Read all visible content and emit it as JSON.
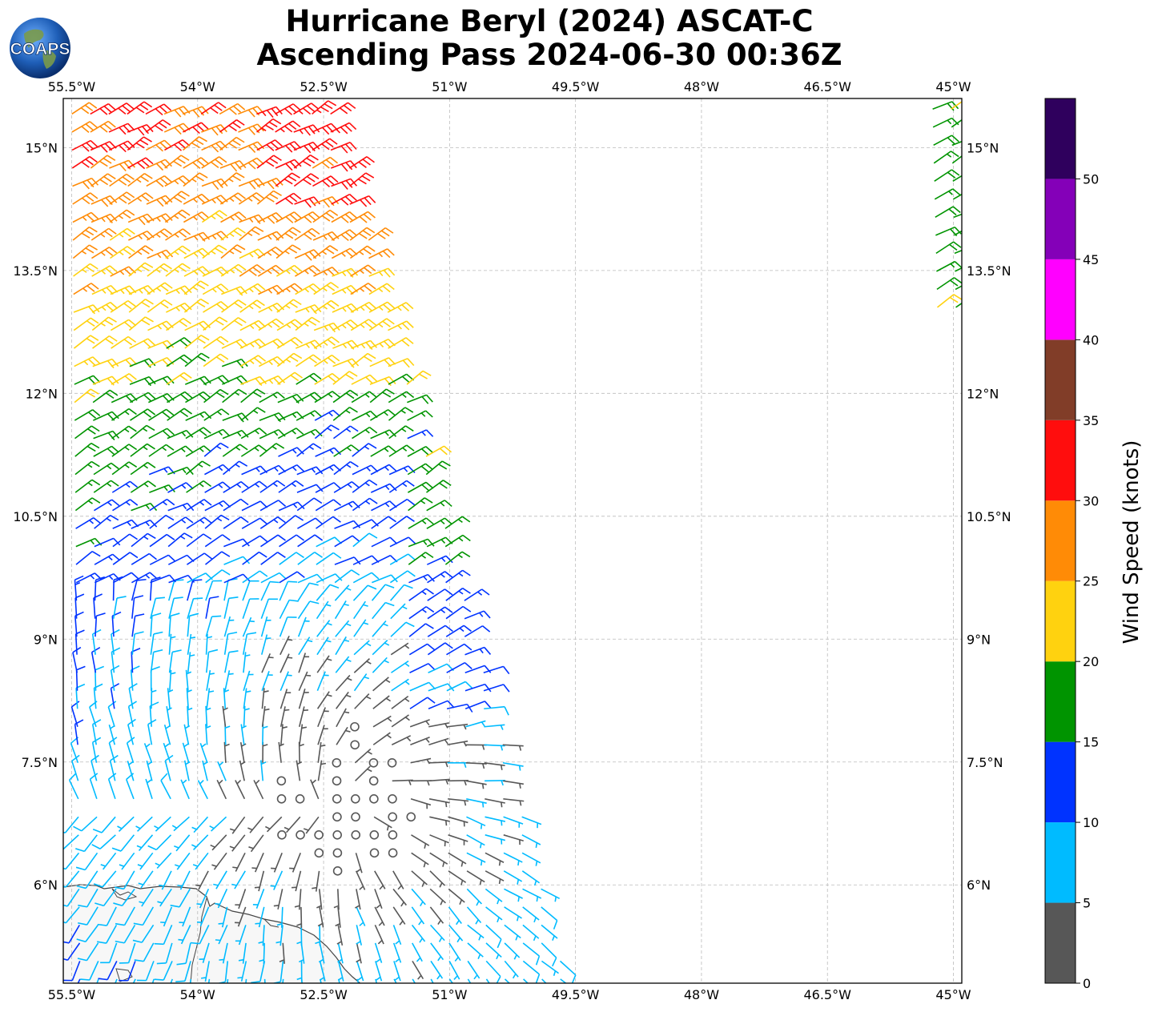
{
  "title": {
    "line1": "Hurricane Beryl (2024) ASCAT-C",
    "line2": "Ascending Pass 2024-06-30 00:36Z"
  },
  "logo": {
    "text": "COAPS",
    "icon": "globe-icon"
  },
  "map": {
    "lon_range": [
      -55.6,
      -44.9
    ],
    "lat_range": [
      4.8,
      15.6
    ],
    "lon_ticks": [
      "55.5°W",
      "54°W",
      "52.5°W",
      "51°W",
      "49.5°W",
      "48°W",
      "46.5°W",
      "45°W"
    ],
    "lat_ticks": [
      "15°N",
      "13.5°N",
      "12°N",
      "10.5°N",
      "9°N",
      "7.5°N",
      "6°N"
    ],
    "gridlines": true,
    "land_color": "#f7f7f7",
    "coast_color": "#444444"
  },
  "colorbar": {
    "label": "Wind Speed (knots)",
    "ticks": [
      "0",
      "5",
      "10",
      "15",
      "20",
      "25",
      "30",
      "35",
      "40",
      "45",
      "50"
    ],
    "bins": [
      {
        "min": 0,
        "max": 5,
        "color": "#575757"
      },
      {
        "min": 5,
        "max": 10,
        "color": "#00bbff"
      },
      {
        "min": 10,
        "max": 15,
        "color": "#0033ff"
      },
      {
        "min": 15,
        "max": 20,
        "color": "#009400"
      },
      {
        "min": 20,
        "max": 25,
        "color": "#ffd20f"
      },
      {
        "min": 25,
        "max": 30,
        "color": "#ff8b06"
      },
      {
        "min": 30,
        "max": 35,
        "color": "#ff0d0d"
      },
      {
        "min": 35,
        "max": 40,
        "color": "#813d28"
      },
      {
        "min": 40,
        "max": 45,
        "color": "#ff00ff"
      },
      {
        "min": 45,
        "max": 50,
        "color": "#8400b8"
      },
      {
        "min": 50,
        "max": 55,
        "color": "#2f005d"
      }
    ]
  },
  "wind_field": {
    "description_center": [
      -52.2,
      7.0
    ],
    "swaths": [
      {
        "lon_west_north": -55.6,
        "lon_east_north": -52.4,
        "lon_west_south": -55.5,
        "lon_east_south": -49.6
      },
      {
        "lon_west_north": -45.35,
        "lon_east_north": -44.9,
        "lon_west_south": -45.1,
        "lon_east_south": -44.9,
        "lat_min": 13.0
      }
    ]
  }
}
